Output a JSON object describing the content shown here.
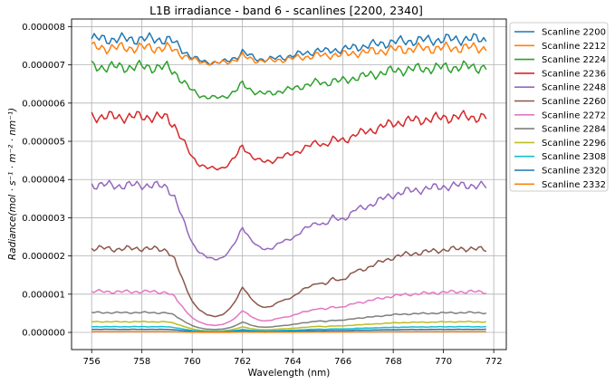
{
  "chart_data": {
    "type": "line",
    "title": "L1B irradiance - band 6 - scanlines [2200, 2340]",
    "xlabel": "Wavelength (nm)",
    "ylabel": "Radiance(mol · s⁻¹ · m⁻² · nm⁻¹)",
    "xlim": [
      755.2,
      772.5
    ],
    "ylim": [
      -4.5e-07,
      8.2e-06
    ],
    "xticks": [
      756,
      758,
      760,
      762,
      764,
      766,
      768,
      770,
      772
    ],
    "xtick_labels": [
      "756",
      "758",
      "760",
      "762",
      "764",
      "766",
      "768",
      "770",
      "772"
    ],
    "yticks": [
      0,
      1e-06,
      2e-06,
      3e-06,
      4e-06,
      5e-06,
      6e-06,
      7e-06,
      8e-06
    ],
    "ytick_labels": [
      "0.000000",
      "0.000001",
      "0.000002",
      "0.000003",
      "0.000004",
      "0.000005",
      "0.000006",
      "0.000007",
      "0.000008"
    ],
    "grid": true,
    "legend_position": "outside-right-top",
    "x_range": [
      756.0,
      771.7
    ],
    "profile_x": [
      756.0,
      756.5,
      757.0,
      757.5,
      758.0,
      758.5,
      759.0,
      759.3,
      759.6,
      759.8,
      760.0,
      760.3,
      760.6,
      760.9,
      761.2,
      761.5,
      761.8,
      762.0,
      762.3,
      762.6,
      762.9,
      763.2,
      763.5,
      763.8,
      764.1,
      764.4,
      764.7,
      765.0,
      765.3,
      765.6,
      765.9,
      766.2,
      766.5,
      766.8,
      767.1,
      767.5,
      768.0,
      768.5,
      769.0,
      769.5,
      770.0,
      770.5,
      771.0,
      771.3,
      771.7
    ],
    "absorption_profile": [
      1.0,
      1.0,
      0.99,
      0.995,
      1.0,
      0.99,
      0.98,
      0.85,
      0.6,
      0.45,
      0.3,
      0.18,
      0.12,
      0.1,
      0.12,
      0.2,
      0.35,
      0.5,
      0.35,
      0.25,
      0.22,
      0.24,
      0.3,
      0.33,
      0.38,
      0.45,
      0.5,
      0.55,
      0.52,
      0.6,
      0.58,
      0.62,
      0.7,
      0.72,
      0.76,
      0.82,
      0.88,
      0.92,
      0.94,
      0.96,
      0.98,
      0.99,
      1.0,
      0.99,
      0.98
    ],
    "series": [
      {
        "name": "Scanline 2200",
        "color": "#1f77b4",
        "base": 7.68e-06,
        "depth": 0.09,
        "ripple": 0.022
      },
      {
        "name": "Scanline 2212",
        "color": "#ff7f0e",
        "base": 7.45e-06,
        "depth": 0.06,
        "ripple": 0.022
      },
      {
        "name": "Scanline 2224",
        "color": "#2ca02c",
        "base": 6.95e-06,
        "depth": 0.13,
        "ripple": 0.025
      },
      {
        "name": "Scanline 2236",
        "color": "#d62728",
        "base": 5.65e-06,
        "depth": 0.27,
        "ripple": 0.03
      },
      {
        "name": "Scanline 2248",
        "color": "#9467bd",
        "base": 3.86e-06,
        "depth": 0.56,
        "ripple": 0.035
      },
      {
        "name": "Scanline 2260",
        "color": "#8c564b",
        "base": 2.2e-06,
        "depth": 0.9,
        "ripple": 0.04
      },
      {
        "name": "Scanline 2272",
        "color": "#e377c2",
        "base": 1.07e-06,
        "depth": 0.92,
        "ripple": 0.05
      },
      {
        "name": "Scanline 2284",
        "color": "#7f7f7f",
        "base": 5.2e-07,
        "depth": 0.95,
        "ripple": 0.05
      },
      {
        "name": "Scanline 2296",
        "color": "#bcbd22",
        "base": 2.8e-07,
        "depth": 0.97,
        "ripple": 0.05
      },
      {
        "name": "Scanline 2308",
        "color": "#17becf",
        "base": 1.5e-07,
        "depth": 0.97,
        "ripple": 0.05
      },
      {
        "name": "Scanline 2320",
        "color": "#1f77b4",
        "base": 8e-08,
        "depth": 0.98,
        "ripple": 0.05
      },
      {
        "name": "Scanline 2332",
        "color": "#ff7f0e",
        "base": 2e-08,
        "depth": 0.98,
        "ripple": 0.05
      }
    ]
  }
}
